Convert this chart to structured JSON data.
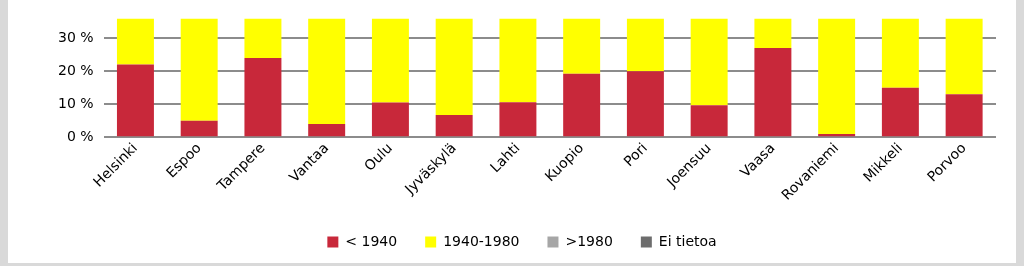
{
  "chart_data": {
    "type": "bar",
    "stacked": true,
    "categories": [
      "Helsinki",
      "Espoo",
      "Tampere",
      "Vantaa",
      "Oulu",
      "Jyväskylä",
      "Lahti",
      "Kuopio",
      "Pori",
      "Joensuu",
      "Vaasa",
      "Rovaniemi",
      "Mikkeli",
      "Porvoo"
    ],
    "series": [
      {
        "name": "< 1940",
        "color": "#c8283a",
        "values": [
          22,
          5,
          24,
          4,
          10.5,
          6.7,
          10.6,
          19.2,
          20,
          9.7,
          27,
          1,
          15,
          13
        ]
      },
      {
        "name": "1940-1980",
        "color": "#ffff00",
        "values": [
          14,
          31,
          12,
          32,
          25.5,
          29.3,
          25.4,
          16.8,
          16,
          26.3,
          9,
          35,
          21,
          23
        ]
      },
      {
        "name": ">1980",
        "color": "#a6a6a6",
        "values": [
          null,
          null,
          null,
          null,
          null,
          null,
          null,
          null,
          null,
          null,
          null,
          null,
          null,
          null
        ]
      },
      {
        "name": "Ei tietoa",
        "color": "#6d6d6d",
        "values": [
          null,
          null,
          null,
          null,
          null,
          null,
          null,
          null,
          null,
          null,
          null,
          null,
          null,
          null
        ]
      }
    ],
    "ylim": [
      0,
      36
    ],
    "yticks": [
      {
        "value": 0,
        "label": "0 %"
      },
      {
        "value": 10,
        "label": "10 %"
      },
      {
        "value": 20,
        "label": "20 %"
      },
      {
        "value": 30,
        "label": "30 %"
      }
    ],
    "grid": "y",
    "legend": "bottom"
  }
}
